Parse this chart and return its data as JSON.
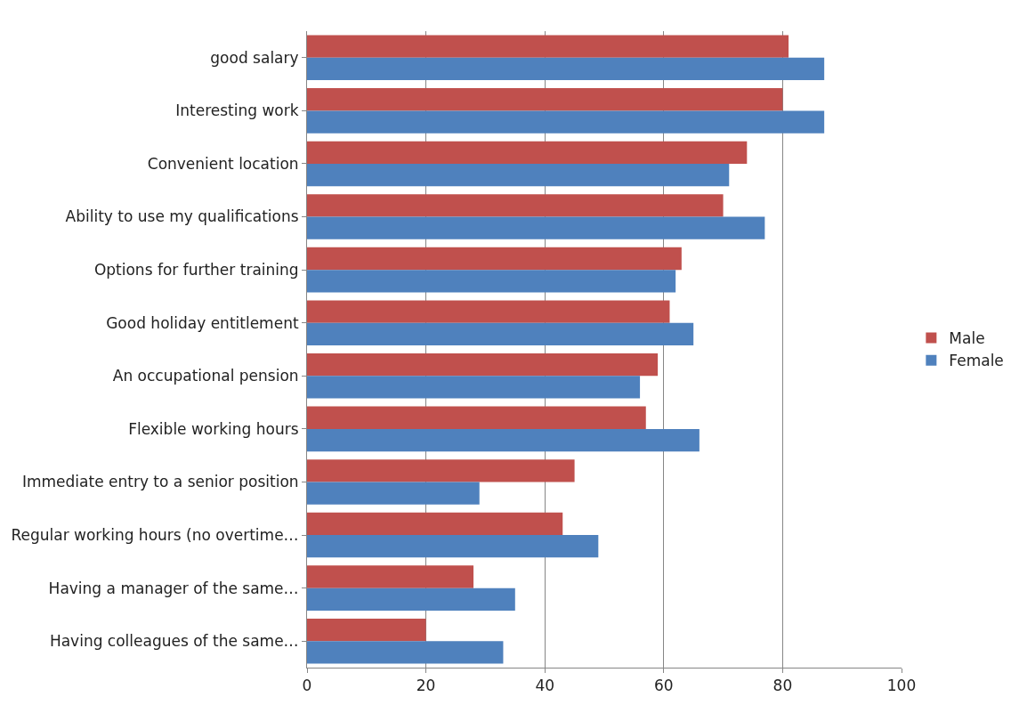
{
  "chart_data": {
    "type": "bar",
    "orientation": "horizontal",
    "categories": [
      "good salary",
      "Interesting work",
      "Convenient location",
      "Ability to use my qualifications",
      "Options for further training",
      "Good holiday entitlement",
      "An occupational pension",
      "Flexible working hours",
      "Immediate entry to a senior position",
      "Regular working hours (no overtime…",
      "Having a manager of the same…",
      "Having colleagues of the same…"
    ],
    "series": [
      {
        "name": "Male",
        "color": "#c0504d",
        "values": [
          81,
          80,
          74,
          70,
          63,
          61,
          59,
          57,
          45,
          43,
          28,
          20
        ]
      },
      {
        "name": "Female",
        "color": "#4f81bd",
        "values": [
          87,
          87,
          71,
          77,
          62,
          65,
          56,
          66,
          29,
          49,
          35,
          33
        ]
      }
    ],
    "xlim": [
      0,
      100
    ],
    "xticks": [
      0,
      20,
      40,
      60,
      80,
      100
    ],
    "grid": "x",
    "legend": "right"
  }
}
